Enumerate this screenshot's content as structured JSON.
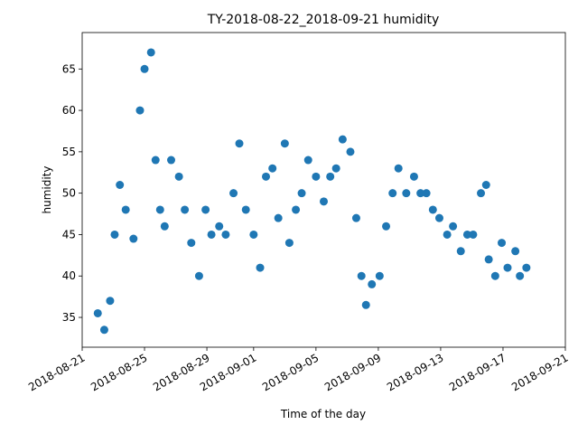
{
  "chart_data": {
    "type": "scatter",
    "title": "TY-2018-08-22_2018-09-21 humidity",
    "xlabel": "Time of the day",
    "ylabel": "humidity",
    "x": [
      "2018-08-22T00:00",
      "2018-08-22T10:00",
      "2018-08-22T19:00",
      "2018-08-23T02:00",
      "2018-08-23T10:00",
      "2018-08-23T19:00",
      "2018-08-24T07:00",
      "2018-08-24T17:00",
      "2018-08-25T00:00",
      "2018-08-25T10:00",
      "2018-08-25T17:00",
      "2018-08-26T00:00",
      "2018-08-26T07:00",
      "2018-08-26T17:00",
      "2018-08-27T05:00",
      "2018-08-27T14:00",
      "2018-08-28T00:00",
      "2018-08-28T12:00",
      "2018-08-28T22:00",
      "2018-08-29T07:00",
      "2018-08-29T19:00",
      "2018-08-30T05:00",
      "2018-08-30T17:00",
      "2018-08-31T02:00",
      "2018-08-31T12:00",
      "2018-09-01T00:00",
      "2018-09-01T10:00",
      "2018-09-01T19:00",
      "2018-09-02T05:00",
      "2018-09-02T14:00",
      "2018-09-03T00:00",
      "2018-09-03T07:00",
      "2018-09-03T17:00",
      "2018-09-04T02:00",
      "2018-09-04T12:00",
      "2018-09-05T00:00",
      "2018-09-05T12:00",
      "2018-09-05T22:00",
      "2018-09-06T07:00",
      "2018-09-06T17:00",
      "2018-09-07T05:00",
      "2018-09-07T14:00",
      "2018-09-07T22:00",
      "2018-09-08T05:00",
      "2018-09-08T14:00",
      "2018-09-09T02:00",
      "2018-09-09T12:00",
      "2018-09-09T22:00",
      "2018-09-10T07:00",
      "2018-09-10T19:00",
      "2018-09-11T07:00",
      "2018-09-11T17:00",
      "2018-09-12T02:00",
      "2018-09-12T12:00",
      "2018-09-12T22:00",
      "2018-09-13T10:00",
      "2018-09-13T19:00",
      "2018-09-14T07:00",
      "2018-09-14T17:00",
      "2018-09-15T02:00",
      "2018-09-15T14:00",
      "2018-09-15T22:00",
      "2018-09-16T02:00",
      "2018-09-16T12:00",
      "2018-09-16T22:00",
      "2018-09-17T07:00",
      "2018-09-17T19:00",
      "2018-09-18T02:00",
      "2018-09-18T12:00"
    ],
    "values": [
      35.5,
      33.5,
      37,
      45,
      51,
      48,
      44.5,
      60,
      65,
      67,
      54,
      48,
      46,
      54,
      52,
      48,
      44,
      40,
      48,
      45,
      46,
      45,
      50,
      56,
      48,
      45,
      41,
      52,
      53,
      47,
      56,
      44,
      48,
      50,
      54,
      52,
      49,
      52,
      53,
      56.5,
      55,
      47,
      40,
      36.5,
      39,
      40,
      46,
      50,
      53,
      50,
      52,
      50,
      50,
      48,
      47,
      45,
      46,
      43,
      45,
      45,
      50,
      51,
      42,
      40,
      44,
      41,
      43,
      40,
      41
    ],
    "color": "#1f77b4",
    "xlim": [
      "2018-08-21",
      "2018-09-21"
    ],
    "xticks": [
      "2018-08-21",
      "2018-08-25",
      "2018-08-29",
      "2018-09-01",
      "2018-09-05",
      "2018-09-09",
      "2018-09-13",
      "2018-09-17",
      "2018-09-21"
    ],
    "ylim": [
      31.4,
      69.4
    ],
    "yticks": [
      35,
      40,
      45,
      50,
      55,
      60,
      65
    ]
  }
}
